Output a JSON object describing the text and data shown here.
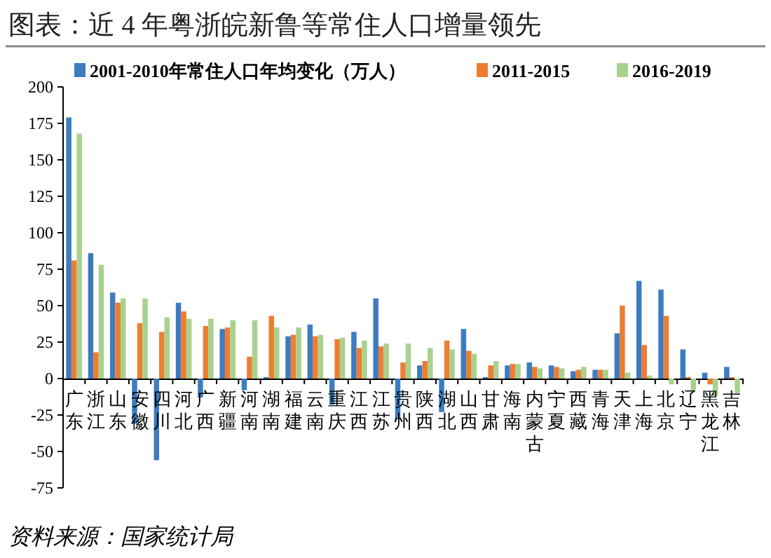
{
  "chart_data": {
    "type": "bar",
    "title": "图表：近 4 年粤浙皖新鲁等常住人口增量领先",
    "categories": [
      "广东",
      "浙江",
      "山东",
      "安徽",
      "四川",
      "河北",
      "广西",
      "新疆",
      "河南",
      "湖南",
      "福建",
      "云南",
      "重庆",
      "江西",
      "江苏",
      "贵州",
      "陕西",
      "湖北",
      "山西",
      "甘肃",
      "海南",
      "内蒙古",
      "宁夏",
      "西藏",
      "青海",
      "天津",
      "上海",
      "北京",
      "辽宁",
      "黑龙江",
      "吉林"
    ],
    "series": [
      {
        "name": "2001-2010年常住人口年均变化（万人）",
        "color": "#3d7cc0",
        "values": [
          179,
          86,
          59,
          -31,
          -56,
          52,
          -13,
          34,
          -8,
          1,
          29,
          37,
          -18,
          32,
          55,
          -28,
          9,
          -23,
          34,
          1,
          9,
          11,
          9,
          5,
          6,
          31,
          67,
          61,
          20,
          4,
          8
        ]
      },
      {
        "name": "2011-2015",
        "color": "#ed7d31",
        "values": [
          81,
          18,
          52,
          38,
          32,
          46,
          36,
          35,
          15,
          43,
          30,
          29,
          27,
          21,
          22,
          11,
          12,
          26,
          19,
          9,
          10,
          8,
          8,
          6,
          6,
          50,
          23,
          43,
          1,
          -4,
          1
        ]
      },
      {
        "name": "2016-2019",
        "color": "#a9d18e",
        "values": [
          168,
          78,
          55,
          55,
          42,
          41,
          41,
          40,
          40,
          35,
          35,
          30,
          28,
          26,
          24,
          24,
          21,
          20,
          17,
          12,
          10,
          7,
          7,
          8,
          6,
          4,
          2,
          -4,
          -8,
          -12,
          -10
        ]
      }
    ],
    "ylim": [
      -75,
      200
    ],
    "yticks": [
      -75,
      -50,
      -25,
      0,
      25,
      50,
      75,
      100,
      125,
      150,
      175,
      200
    ],
    "legend": "top",
    "grid": false,
    "annotations": [
      "资料来源：国家统计局"
    ]
  }
}
